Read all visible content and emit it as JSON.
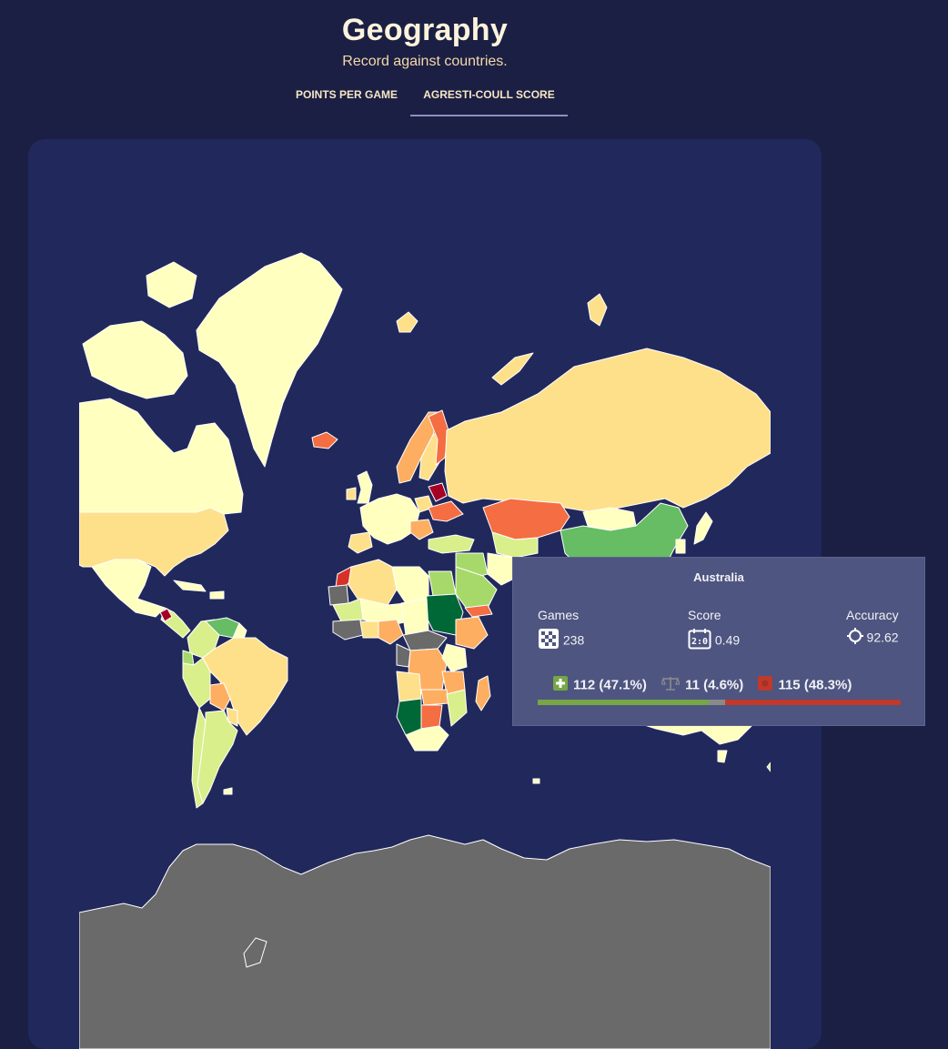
{
  "header": {
    "title": "Geography",
    "subtitle": "Record against countries.",
    "tabs": [
      {
        "label": "POINTS PER GAME",
        "active": false
      },
      {
        "label": "AGRESTI-COULL SCORE",
        "active": true
      }
    ]
  },
  "tooltip": {
    "country": "Australia",
    "games_label": "Games",
    "games_value": "238",
    "score_label": "Score",
    "score_value": "0.49",
    "accuracy_label": "Accuracy",
    "accuracy_value": "92.62",
    "wins": "112 (47.1%)",
    "draws": "11 (4.6%)",
    "losses": "115 (48.3%)",
    "win_fraction": 0.471,
    "draw_fraction": 0.046,
    "loss_fraction": 0.483
  },
  "colors": {
    "background": "#1b1f44",
    "card": "#21285b",
    "ocean": "#21285b",
    "no_data": "#6a6a6a",
    "scale": [
      "#006837",
      "#66bd63",
      "#a6d96a",
      "#d9ef8b",
      "#ffffbf",
      "#fee08b",
      "#fdae61",
      "#f46d43",
      "#a50026"
    ],
    "win": "#76a646",
    "draw": "#8a8a8a",
    "loss": "#c0392b"
  }
}
